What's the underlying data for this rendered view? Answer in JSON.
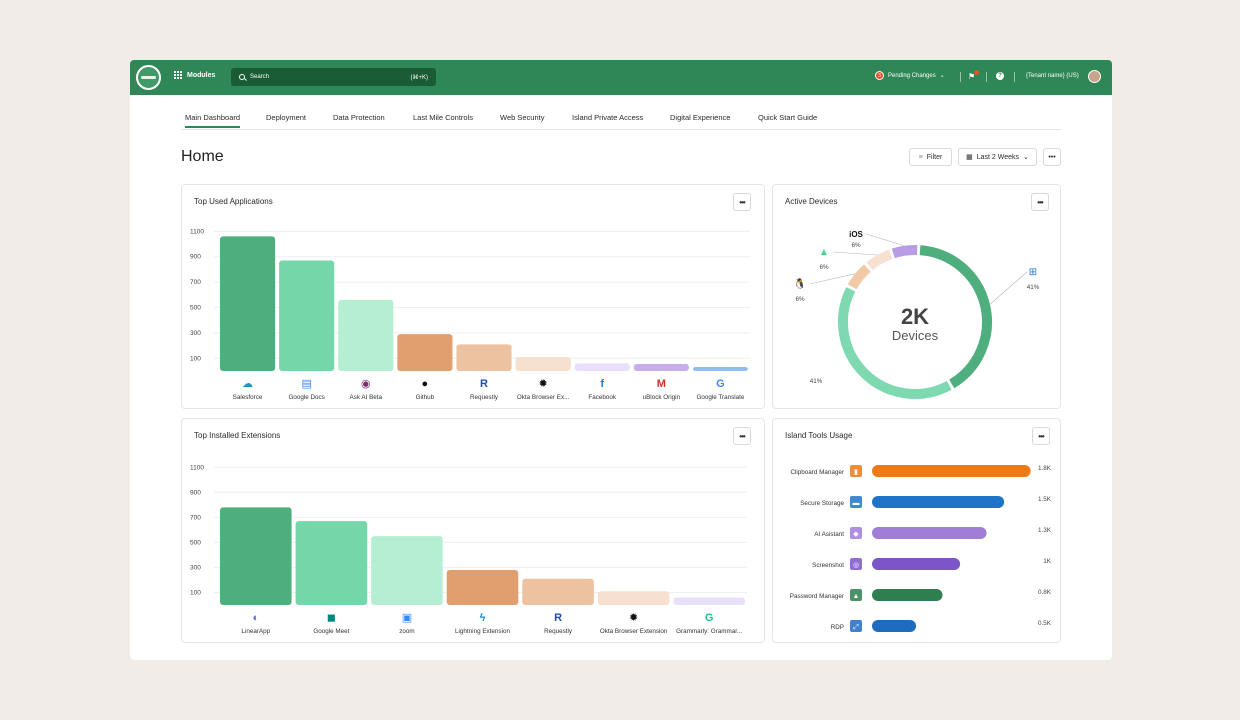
{
  "topbar": {
    "modules_label": "Modules",
    "search_placeholder": "Search",
    "search_shortcut": "(⌘+K)",
    "pending_count": "3",
    "pending_label": "Pending Changes",
    "tenant_label": "{Tenant name} (US)",
    "help_glyph": "?"
  },
  "tabs": [
    {
      "label": "Main Dashboard",
      "active": true
    },
    {
      "label": "Deployment"
    },
    {
      "label": "Data Protection"
    },
    {
      "label": "Last Mile Controls"
    },
    {
      "label": "Web Security"
    },
    {
      "label": "Island Private Access"
    },
    {
      "label": "Digital Experience"
    },
    {
      "label": "Quick Start Guide"
    }
  ],
  "page": {
    "title": "Home",
    "filter_label": "Filter",
    "date_range": "Last 2 Weeks",
    "more": "•••"
  },
  "colors": {
    "brand": "#2f8656",
    "dark_green": "#4fae7d",
    "mid_green": "#75d6a9",
    "light_green": "#b5eed3",
    "dark_orange": "#e19f6f",
    "mid_orange": "#edc2a0",
    "light_orange": "#f6e0cf",
    "light_purple": "#e8e0f8",
    "mid_purple": "#c6adec",
    "blue": "#92bdf2"
  },
  "cards": {
    "top_used": {
      "title": "Top Used Applications"
    },
    "active_devices": {
      "title": "Active Devices"
    },
    "top_extensions": {
      "title": "Top Installed Extensions"
    },
    "tools_usage": {
      "title": "Island Tools Usage"
    }
  },
  "chart_data": [
    {
      "type": "bar",
      "title": "Top Used Applications",
      "y_ticks": [
        "1100",
        "900",
        "700",
        "500",
        "300",
        "100"
      ],
      "ylim": [
        0,
        1150
      ],
      "categories": [
        "Salesforce",
        "Google Docs",
        "Ask AI Beta",
        "Github",
        "Requestly",
        "Okta Browser Ex...",
        "Facebook",
        "uBlock Origin",
        "Google Translate"
      ],
      "icons": [
        "salesforce-icon",
        "google-docs-icon",
        "ask-ai-icon",
        "github-icon",
        "requestly-icon",
        "okta-icon",
        "facebook-icon",
        "ublock-gmail-icon",
        "google-translate-icon"
      ],
      "values": [
        1060,
        870,
        560,
        290,
        210,
        110,
        60,
        55,
        30
      ],
      "colors": [
        "#4fae7d",
        "#75d6a9",
        "#b5eed3",
        "#e19f6f",
        "#edc2a0",
        "#f6e0cf",
        "#e8e0f8",
        "#c6adec",
        "#92bdf2"
      ],
      "grid": true
    },
    {
      "type": "pie",
      "title": "Active Devices",
      "center_value": "2K",
      "center_label": "Devices",
      "slices": [
        {
          "name": "Windows",
          "value": 41,
          "label": "41%",
          "color": "#4fae7d",
          "icon": "windows-icon"
        },
        {
          "name": "Apple",
          "value": 41,
          "label": "41%",
          "color": "#7fd9b0",
          "icon": "apple-icon"
        },
        {
          "name": "Linux",
          "value": 6,
          "label": "6%",
          "color": "#f1c9a4",
          "icon": "linux-icon"
        },
        {
          "name": "Android",
          "value": 6,
          "label": "6%",
          "color": "#f8e1d0",
          "icon": "android-icon"
        },
        {
          "name": "iOS",
          "value": 6,
          "label": "6%",
          "color": "#b89de6",
          "icon": "ios-icon",
          "title": "iOS"
        }
      ]
    },
    {
      "type": "bar",
      "title": "Top Installed Extensions",
      "y_ticks": [
        "1100",
        "900",
        "700",
        "500",
        "300",
        "100"
      ],
      "ylim": [
        0,
        1150
      ],
      "categories": [
        "LinearApp",
        "Google Meet",
        "zoom",
        "Lightning Extension",
        "Requestly",
        "Okta Browser Extension",
        "Grammarly: Grammar..."
      ],
      "icons": [
        "linear-icon",
        "google-meet-icon",
        "zoom-icon",
        "lightning-icon",
        "requestly-icon",
        "okta-icon",
        "grammarly-icon"
      ],
      "values": [
        780,
        670,
        550,
        280,
        210,
        110,
        60
      ],
      "colors": [
        "#4fae7d",
        "#75d6a9",
        "#b5eed3",
        "#e19f6f",
        "#edc2a0",
        "#f6e0cf",
        "#e8e0f8"
      ],
      "grid": true
    },
    {
      "type": "bar",
      "orientation": "horizontal",
      "title": "Island Tools Usage",
      "categories": [
        "Clipboard Manager",
        "Secure Storage",
        "AI Asistant",
        "Screenshot",
        "Password Manager",
        "RDP"
      ],
      "icons": [
        "clipboard-icon",
        "folder-icon",
        "ai-icon",
        "screenshot-icon",
        "password-icon",
        "rdp-icon"
      ],
      "values": [
        1800,
        1500,
        1300,
        1000,
        800,
        500
      ],
      "value_labels": [
        "1.8K",
        "1.5K",
        "1.3K",
        "1K",
        "0.8K",
        "0.5K"
      ],
      "colors": [
        "#ec7a18",
        "#1e74c8",
        "#a07ed8",
        "#7c55c8",
        "#2e7e4f",
        "#1e6bc0"
      ],
      "icon_colors": [
        "#ec7a18",
        "#1e74c8",
        "#a07ed8",
        "#7c55c8",
        "#2e7e4f",
        "#1e6bc0"
      ],
      "xlim": [
        0,
        1850
      ]
    }
  ]
}
